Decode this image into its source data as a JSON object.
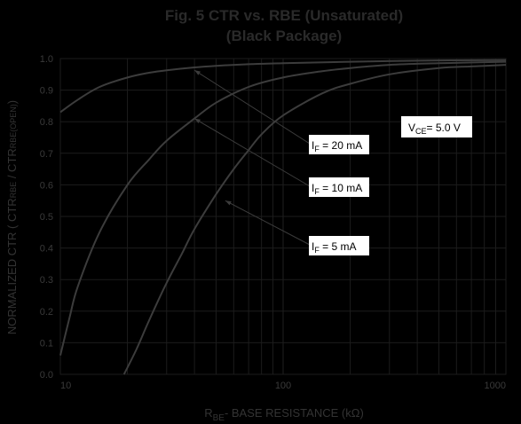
{
  "chart_data": {
    "type": "line",
    "title": "Fig. 5  CTR vs. RBE (Unsaturated)",
    "subtitle": "(Black Package)",
    "xlabel": "RBE- BASE RESISTANCE (kΩ)",
    "ylabel": "NORMALIZED CTR ( CTRRBE / CTRRBE(OPEN))",
    "x_scale": "log",
    "xlim": [
      10,
      1000
    ],
    "ylim": [
      0.0,
      1.0
    ],
    "x_ticks": [
      "10",
      "100",
      "1000"
    ],
    "y_ticks": [
      "0.0",
      "0.1",
      "0.2",
      "0.3",
      "0.4",
      "0.5",
      "0.6",
      "0.7",
      "0.8",
      "0.9",
      "1.0"
    ],
    "grid": true,
    "annotation": "VCE= 5.0 V",
    "series": [
      {
        "name": "IF = 20 mA",
        "x": [
          10,
          12,
          15,
          20,
          25,
          30,
          40,
          50,
          70,
          100,
          200,
          500,
          1000
        ],
        "y": [
          0.83,
          0.87,
          0.91,
          0.94,
          0.955,
          0.963,
          0.972,
          0.977,
          0.982,
          0.985,
          0.99,
          0.994,
          0.995
        ]
      },
      {
        "name": "IF = 10 mA",
        "x": [
          10,
          11,
          12,
          15,
          20,
          25,
          30,
          40,
          50,
          70,
          100,
          150,
          200,
          300,
          500,
          1000
        ],
        "y": [
          0.06,
          0.18,
          0.28,
          0.45,
          0.6,
          0.68,
          0.74,
          0.81,
          0.86,
          0.91,
          0.94,
          0.96,
          0.97,
          0.98,
          0.985,
          0.99
        ]
      },
      {
        "name": "IF = 5 mA",
        "x": [
          19.3,
          22,
          25,
          30,
          35,
          40,
          50,
          60,
          70,
          80,
          100,
          150,
          200,
          300,
          500,
          700,
          1000
        ],
        "y": [
          0.0,
          0.08,
          0.17,
          0.29,
          0.38,
          0.46,
          0.57,
          0.65,
          0.71,
          0.76,
          0.82,
          0.89,
          0.92,
          0.95,
          0.97,
          0.975,
          0.98
        ]
      }
    ],
    "labels": [
      {
        "series": 0,
        "text": "IF  = 20 mA",
        "sub": "F",
        "main": "I",
        "rest": "  = 20 mA",
        "arrow_to": [
          40,
          0.963
        ]
      },
      {
        "series": 1,
        "text": "IF  = 10 mA",
        "sub": "F",
        "main": "I",
        "rest": "  = 10 mA",
        "arrow_to": [
          40,
          0.81
        ]
      },
      {
        "series": 2,
        "text": "IF  = 5 mA",
        "sub": "F",
        "main": "I",
        "rest": "  = 5 mA",
        "arrow_to": [
          55,
          0.55
        ]
      }
    ],
    "colors": {
      "background": "#000000",
      "grid": "#1c1c1c",
      "curve": "#3c3c3c",
      "label_box": "#ffffff"
    }
  }
}
